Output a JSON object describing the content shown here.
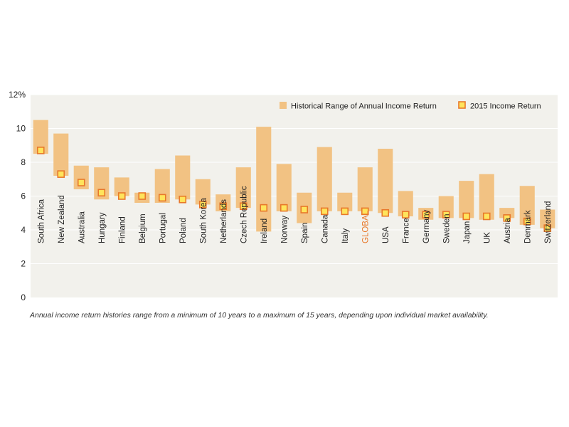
{
  "colors": {
    "range_bar": "#F2C283",
    "marker_fill": "#FFE45C",
    "marker_stroke": "#E8782A",
    "highlight_label": "#E8782A",
    "plot_bg": "#F2F1EC",
    "gridline": "#FFFFFF",
    "text": "#222222"
  },
  "chart_data": {
    "type": "range-bar-with-markers",
    "y_ticks": [
      "0",
      "2",
      "4",
      "6",
      "8",
      "10",
      "12%"
    ],
    "ylim": [
      0,
      12
    ],
    "grid": true,
    "legend_position": "top-right",
    "legend": {
      "range_label": "Historical Range of Annual Income Return",
      "marker_label": "2015 Income Return"
    },
    "highlight_category": "GLOBAL",
    "categories": [
      "South Africa",
      "New Zealand",
      "Australia",
      "Hungary",
      "Finland",
      "Belgium",
      "Portugal",
      "Poland",
      "South Korea",
      "Netherlands",
      "Czech Republic",
      "Ireland",
      "Norway",
      "Spain",
      "Canada",
      "Italy",
      "GLOBAL",
      "USA",
      "France",
      "Germany",
      "Sweden",
      "Japan",
      "UK",
      "Austria",
      "Denmark",
      "Switzerland"
    ],
    "range_low": [
      8.5,
      7.2,
      6.4,
      5.8,
      6.0,
      5.6,
      5.6,
      5.8,
      5.5,
      5.1,
      5.3,
      3.9,
      5.1,
      4.4,
      5.1,
      5.1,
      5.1,
      5.0,
      4.8,
      4.6,
      4.7,
      4.7,
      4.6,
      4.7,
      4.3,
      4.1
    ],
    "range_high": [
      10.5,
      9.7,
      7.8,
      7.7,
      7.1,
      6.2,
      7.6,
      8.4,
      7.0,
      6.1,
      7.7,
      10.1,
      7.9,
      6.2,
      8.9,
      6.2,
      7.7,
      8.8,
      6.3,
      5.3,
      6.0,
      6.9,
      7.3,
      5.3,
      6.6,
      5.2
    ],
    "income_2015": [
      8.7,
      7.3,
      6.8,
      6.2,
      6.0,
      6.0,
      5.9,
      5.8,
      5.5,
      5.4,
      5.4,
      5.3,
      5.3,
      5.2,
      5.1,
      5.1,
      5.1,
      5.0,
      4.9,
      4.9,
      4.9,
      4.8,
      4.8,
      4.7,
      4.5,
      4.1
    ]
  },
  "caption": "Annual income return histories range from a minimum of 10 years to a maximum of 15 years, depending upon individual market availability."
}
